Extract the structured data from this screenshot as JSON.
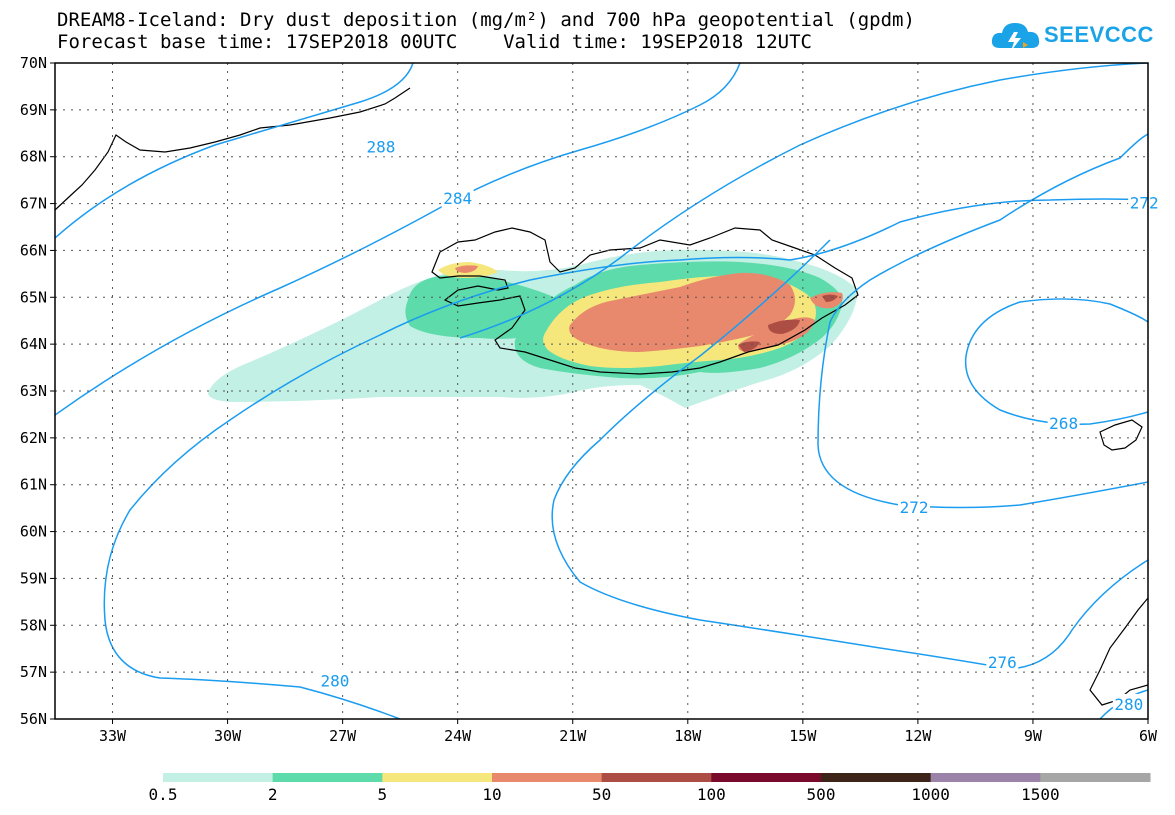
{
  "header": {
    "title_line1": "DREAM8-Iceland: Dry dust deposition (mg/m²) and 700 hPa geopotential (gpdm)",
    "title_line2": "Forecast base time: 17SEP2018 00UTC    Valid time: 19SEP2018 12UTC"
  },
  "logo": {
    "text": "SEEVCCC",
    "icon": "cloud-lightning-icon",
    "color": "#1aa3e6"
  },
  "map": {
    "lon_range": [
      -34.5,
      -6
    ],
    "lat_range": [
      56,
      70
    ],
    "lat_ticks": [
      {
        "value": 70,
        "label": "70N"
      },
      {
        "value": 69,
        "label": "69N"
      },
      {
        "value": 68,
        "label": "68N"
      },
      {
        "value": 67,
        "label": "67N"
      },
      {
        "value": 66,
        "label": "66N"
      },
      {
        "value": 65,
        "label": "65N"
      },
      {
        "value": 64,
        "label": "64N"
      },
      {
        "value": 63,
        "label": "63N"
      },
      {
        "value": 62,
        "label": "62N"
      },
      {
        "value": 61,
        "label": "61N"
      },
      {
        "value": 60,
        "label": "60N"
      },
      {
        "value": 59,
        "label": "59N"
      },
      {
        "value": 58,
        "label": "58N"
      },
      {
        "value": 57,
        "label": "57N"
      },
      {
        "value": 56,
        "label": "56N"
      }
    ],
    "lon_ticks": [
      {
        "value": -33,
        "label": "33W"
      },
      {
        "value": -30,
        "label": "30W"
      },
      {
        "value": -27,
        "label": "27W"
      },
      {
        "value": -24,
        "label": "24W"
      },
      {
        "value": -21,
        "label": "21W"
      },
      {
        "value": -18,
        "label": "18W"
      },
      {
        "value": -15,
        "label": "15W"
      },
      {
        "value": -12,
        "label": "12W"
      },
      {
        "value": -9,
        "label": "9W"
      },
      {
        "value": -6,
        "label": "6W"
      }
    ],
    "contour_color": "#1a9cf0",
    "contour_labels": [
      {
        "text": "288",
        "lon": -26.0,
        "lat": 68.2
      },
      {
        "text": "284",
        "lon": -24.0,
        "lat": 67.1
      },
      {
        "text": "272",
        "lon": -6.1,
        "lat": 67.0
      },
      {
        "text": "268",
        "lon": -8.2,
        "lat": 62.3
      },
      {
        "text": "272",
        "lon": -12.1,
        "lat": 60.5
      },
      {
        "text": "276",
        "lon": -9.8,
        "lat": 57.2
      },
      {
        "text": "280",
        "lon": -27.2,
        "lat": 56.8
      },
      {
        "text": "280",
        "lon": -6.5,
        "lat": 56.3
      }
    ]
  },
  "legend": {
    "colors": [
      "#c2f0e4",
      "#5ddbab",
      "#f5e77c",
      "#e8896d",
      "#ac4e44",
      "#7a0a2c",
      "#3c2418",
      "#9b82a8",
      "#a6a6a6"
    ],
    "labels": [
      "0.5",
      "2",
      "5",
      "10",
      "50",
      "100",
      "500",
      "1000",
      "1500"
    ]
  }
}
